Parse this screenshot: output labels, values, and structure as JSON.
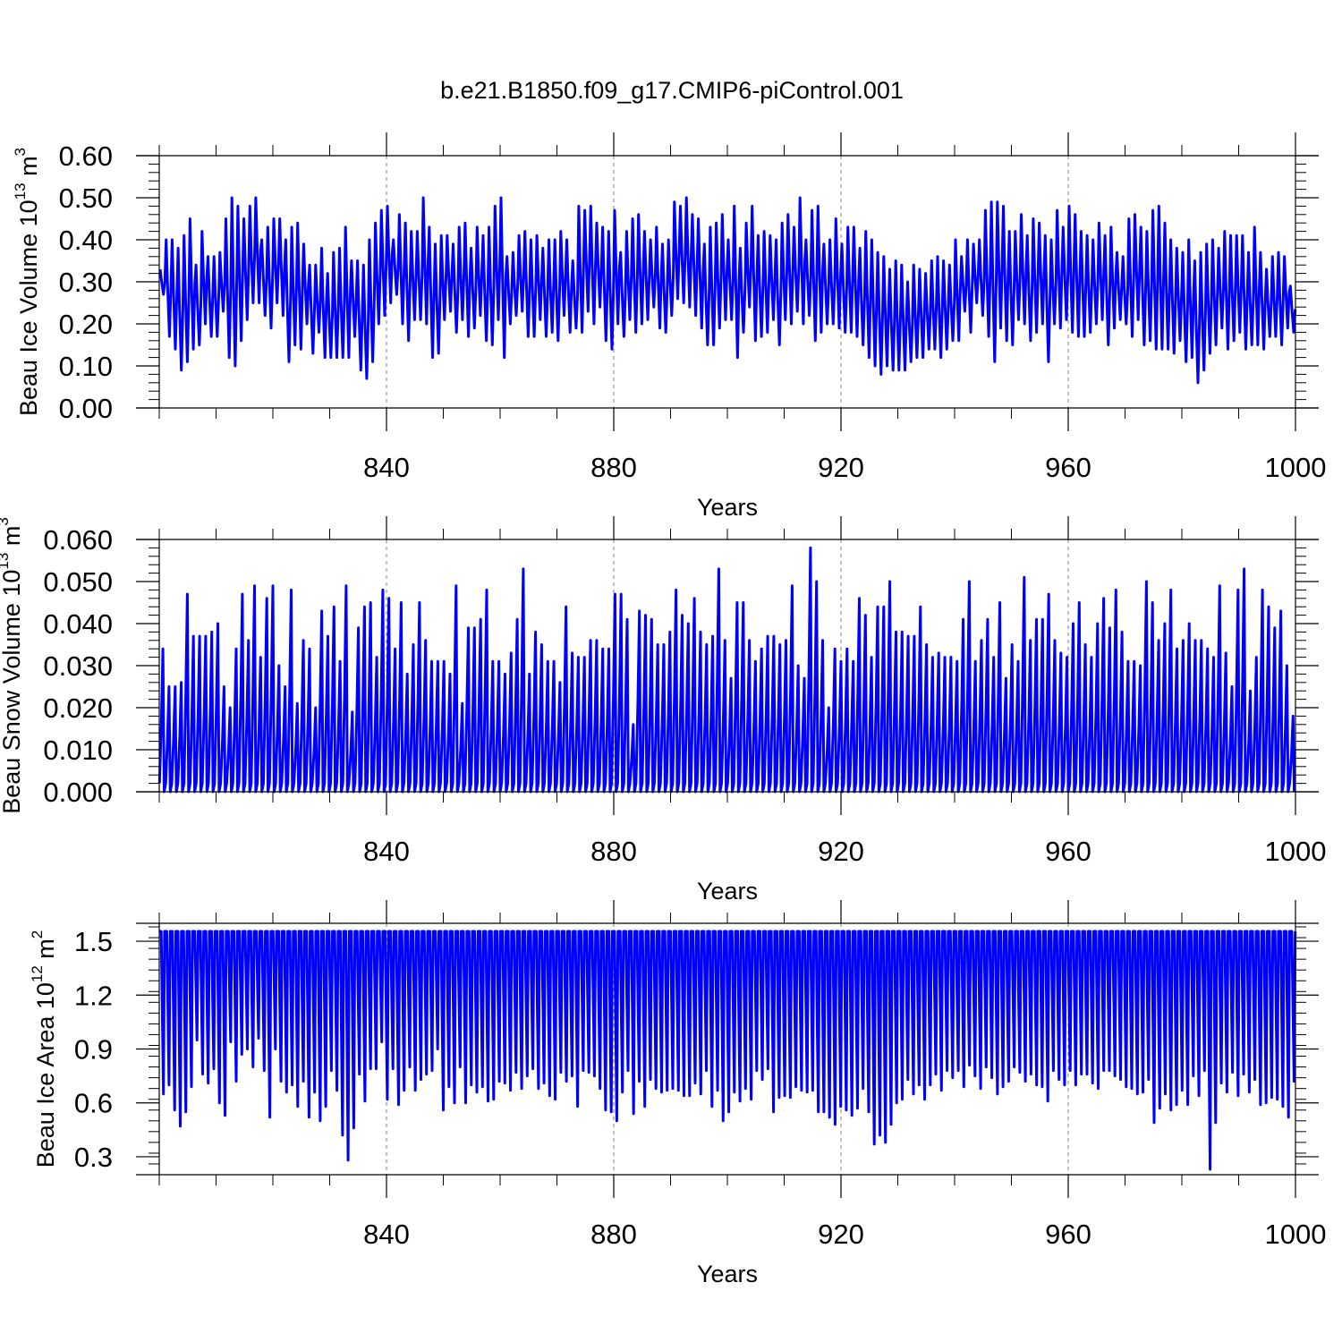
{
  "chart_data": {
    "type": "line",
    "title": "b.e21.B1850.f09_g17.CMIP6-piControl.001",
    "panels": [
      {
        "type": "line",
        "ylabel": "Beau Ice Volume 10",
        "ylabel_exp": "13",
        "ylabel_unit": " m",
        "ylabel_unit_exp": "3",
        "xlabel": "Years",
        "xlim": [
          800,
          1000
        ],
        "ylim": [
          0,
          0.6
        ],
        "yticks": [
          0,
          0.1,
          0.2,
          0.3,
          0.4,
          0.5,
          0.6
        ],
        "ytick_labels": [
          "0.00",
          "0.10",
          "0.20",
          "0.30",
          "0.40",
          "0.50",
          "0.60"
        ],
        "xticks": [
          840,
          880,
          920,
          960,
          1000
        ],
        "xtick_labels": [
          "840",
          "880",
          "920",
          "960",
          "1000"
        ],
        "grid": "vertical dashed at major x ticks",
        "color": "#0000ff",
        "series_note": "monthly values, one seasonal cycle per year",
        "winter_max": [
          0.33,
          0.4,
          0.4,
          0.38,
          0.41,
          0.45,
          0.34,
          0.42,
          0.36,
          0.36,
          0.37,
          0.45,
          0.5,
          0.48,
          0.45,
          0.48,
          0.5,
          0.4,
          0.43,
          0.45,
          0.45,
          0.4,
          0.43,
          0.44,
          0.39,
          0.34,
          0.34,
          0.38,
          0.32,
          0.37,
          0.38,
          0.43,
          0.35,
          0.35,
          0.34,
          0.4,
          0.44,
          0.47,
          0.48,
          0.4,
          0.46,
          0.44,
          0.42,
          0.42,
          0.5,
          0.43,
          0.39,
          0.41,
          0.41,
          0.39,
          0.43,
          0.44,
          0.38,
          0.43,
          0.41,
          0.43,
          0.48,
          0.5,
          0.36,
          0.37,
          0.41,
          0.42,
          0.4,
          0.41,
          0.38,
          0.4,
          0.4,
          0.42,
          0.4,
          0.35,
          0.48,
          0.47,
          0.48,
          0.44,
          0.43,
          0.42,
          0.47,
          0.37,
          0.42,
          0.45,
          0.46,
          0.42,
          0.4,
          0.43,
          0.39,
          0.4,
          0.49,
          0.48,
          0.5,
          0.46,
          0.45,
          0.39,
          0.43,
          0.44,
          0.46,
          0.4,
          0.48,
          0.38,
          0.44,
          0.48,
          0.41,
          0.42,
          0.41,
          0.4,
          0.44,
          0.46,
          0.43,
          0.5,
          0.4,
          0.47,
          0.48,
          0.39,
          0.4,
          0.45,
          0.39,
          0.43,
          0.43,
          0.38,
          0.42,
          0.4,
          0.37,
          0.36,
          0.33,
          0.35,
          0.34,
          0.3,
          0.34,
          0.33,
          0.32,
          0.35,
          0.36,
          0.35,
          0.34,
          0.4,
          0.36,
          0.4,
          0.39,
          0.4,
          0.47,
          0.49,
          0.49,
          0.48,
          0.42,
          0.42,
          0.46,
          0.41,
          0.45,
          0.44,
          0.41,
          0.4,
          0.47,
          0.43,
          0.48,
          0.46,
          0.42,
          0.41,
          0.4,
          0.44,
          0.41,
          0.43,
          0.37,
          0.36,
          0.45,
          0.46,
          0.43,
          0.42,
          0.47,
          0.48,
          0.44,
          0.4,
          0.38,
          0.37,
          0.4,
          0.35,
          0.37,
          0.39,
          0.4,
          0.38,
          0.42,
          0.41,
          0.41,
          0.41,
          0.37,
          0.43,
          0.37,
          0.33,
          0.36,
          0.37,
          0.36,
          0.29
        ],
        "summer_min": [
          0.27,
          0.17,
          0.14,
          0.09,
          0.11,
          0.14,
          0.15,
          0.2,
          0.17,
          0.17,
          0.23,
          0.12,
          0.1,
          0.16,
          0.21,
          0.25,
          0.25,
          0.22,
          0.19,
          0.25,
          0.22,
          0.11,
          0.15,
          0.14,
          0.2,
          0.13,
          0.18,
          0.12,
          0.12,
          0.12,
          0.12,
          0.12,
          0.17,
          0.09,
          0.07,
          0.11,
          0.2,
          0.22,
          0.25,
          0.27,
          0.2,
          0.16,
          0.21,
          0.21,
          0.2,
          0.12,
          0.13,
          0.21,
          0.23,
          0.18,
          0.21,
          0.17,
          0.19,
          0.22,
          0.16,
          0.15,
          0.21,
          0.12,
          0.2,
          0.22,
          0.23,
          0.17,
          0.17,
          0.21,
          0.17,
          0.18,
          0.16,
          0.22,
          0.18,
          0.19,
          0.18,
          0.23,
          0.2,
          0.24,
          0.16,
          0.14,
          0.2,
          0.17,
          0.21,
          0.18,
          0.2,
          0.21,
          0.24,
          0.19,
          0.18,
          0.22,
          0.26,
          0.25,
          0.24,
          0.22,
          0.19,
          0.15,
          0.15,
          0.19,
          0.21,
          0.21,
          0.12,
          0.18,
          0.24,
          0.16,
          0.17,
          0.18,
          0.21,
          0.15,
          0.21,
          0.2,
          0.23,
          0.2,
          0.22,
          0.16,
          0.18,
          0.2,
          0.2,
          0.19,
          0.18,
          0.18,
          0.17,
          0.15,
          0.12,
          0.1,
          0.08,
          0.1,
          0.09,
          0.09,
          0.09,
          0.11,
          0.12,
          0.12,
          0.14,
          0.14,
          0.12,
          0.14,
          0.16,
          0.16,
          0.23,
          0.18,
          0.25,
          0.22,
          0.17,
          0.11,
          0.19,
          0.16,
          0.15,
          0.21,
          0.2,
          0.16,
          0.18,
          0.2,
          0.11,
          0.2,
          0.19,
          0.21,
          0.18,
          0.17,
          0.17,
          0.18,
          0.2,
          0.21,
          0.15,
          0.19,
          0.21,
          0.2,
          0.17,
          0.21,
          0.15,
          0.16,
          0.14,
          0.14,
          0.14,
          0.13,
          0.16,
          0.11,
          0.12,
          0.06,
          0.09,
          0.13,
          0.15,
          0.19,
          0.14,
          0.16,
          0.18,
          0.14,
          0.15,
          0.15,
          0.14,
          0.17,
          0.17,
          0.15,
          0.19,
          0.18
        ]
      },
      {
        "type": "line",
        "ylabel": "Beau Snow Volume 10",
        "ylabel_exp": "13",
        "ylabel_unit": " m",
        "ylabel_unit_exp": "3",
        "xlabel": "Years",
        "xlim": [
          800,
          1000
        ],
        "ylim": [
          0,
          0.06
        ],
        "yticks": [
          0,
          0.01,
          0.02,
          0.03,
          0.04,
          0.05,
          0.06
        ],
        "ytick_labels": [
          "0.000",
          "0.010",
          "0.020",
          "0.030",
          "0.040",
          "0.050",
          "0.060"
        ],
        "xticks": [
          840,
          880,
          920,
          960,
          1000
        ],
        "xtick_labels": [
          "840",
          "880",
          "920",
          "960",
          "1000"
        ],
        "grid": "vertical dashed at major x ticks",
        "color": "#0000ff",
        "series_note": "monthly values, one seasonal cycle per year",
        "winter_max": [
          0.034,
          0.025,
          0.025,
          0.026,
          0.047,
          0.037,
          0.037,
          0.037,
          0.038,
          0.04,
          0.025,
          0.02,
          0.034,
          0.047,
          0.036,
          0.049,
          0.032,
          0.046,
          0.049,
          0.03,
          0.025,
          0.048,
          0.021,
          0.036,
          0.034,
          0.02,
          0.043,
          0.037,
          0.044,
          0.031,
          0.049,
          0.019,
          0.039,
          0.044,
          0.045,
          0.032,
          0.048,
          0.046,
          0.034,
          0.045,
          0.028,
          0.035,
          0.045,
          0.036,
          0.031,
          0.031,
          0.031,
          0.028,
          0.049,
          0.021,
          0.039,
          0.039,
          0.041,
          0.048,
          0.031,
          0.031,
          0.028,
          0.033,
          0.041,
          0.053,
          0.028,
          0.038,
          0.035,
          0.031,
          0.031,
          0.026,
          0.044,
          0.033,
          0.032,
          0.032,
          0.036,
          0.036,
          0.034,
          0.034,
          0.047,
          0.047,
          0.041,
          0.016,
          0.043,
          0.042,
          0.041,
          0.035,
          0.035,
          0.038,
          0.048,
          0.042,
          0.04,
          0.046,
          0.038,
          0.035,
          0.037,
          0.053,
          0.036,
          0.027,
          0.045,
          0.045,
          0.036,
          0.031,
          0.034,
          0.037,
          0.037,
          0.035,
          0.036,
          0.049,
          0.03,
          0.027,
          0.058,
          0.05,
          0.036,
          0.02,
          0.034,
          0.031,
          0.034,
          0.031,
          0.046,
          0.042,
          0.032,
          0.044,
          0.044,
          0.05,
          0.038,
          0.038,
          0.037,
          0.037,
          0.044,
          0.035,
          0.032,
          0.033,
          0.032,
          0.032,
          0.031,
          0.041,
          0.05,
          0.031,
          0.036,
          0.041,
          0.032,
          0.045,
          0.027,
          0.035,
          0.031,
          0.051,
          0.036,
          0.041,
          0.041,
          0.047,
          0.036,
          0.033,
          0.032,
          0.04,
          0.045,
          0.035,
          0.032,
          0.04,
          0.046,
          0.039,
          0.048,
          0.038,
          0.031,
          0.031,
          0.03,
          0.05,
          0.045,
          0.036,
          0.04,
          0.048,
          0.034,
          0.036,
          0.04,
          0.036,
          0.036,
          0.034,
          0.032,
          0.049,
          0.033,
          0.025,
          0.048,
          0.053,
          0.024,
          0.032,
          0.048,
          0.044,
          0.039,
          0.043,
          0.03,
          0.018
        ]
      },
      {
        "type": "line",
        "ylabel": "Beau Ice Area 10",
        "ylabel_exp": "12",
        "ylabel_unit": " m",
        "ylabel_unit_exp": "2",
        "xlabel": "Years",
        "xlim": [
          800,
          1000
        ],
        "ylim": [
          0.2,
          1.6
        ],
        "yticks": [
          0.3,
          0.6,
          0.9,
          1.2,
          1.5
        ],
        "ytick_labels": [
          "0.3",
          "0.6",
          "0.9",
          "1.2",
          "1.5"
        ],
        "xticks": [
          840,
          880,
          920,
          960,
          1000
        ],
        "xtick_labels": [
          "840",
          "880",
          "920",
          "960",
          "1000"
        ],
        "grid": "vertical dashed at major x ticks",
        "color": "#0000ff",
        "series_note": "monthly values, one seasonal cycle per year",
        "winter_max": 1.555,
        "summer_min": [
          0.65,
          0.7,
          0.56,
          0.47,
          0.55,
          0.69,
          0.95,
          0.76,
          0.71,
          0.79,
          0.6,
          0.53,
          0.94,
          0.72,
          0.87,
          0.9,
          0.8,
          0.96,
          0.78,
          0.52,
          0.9,
          0.72,
          0.66,
          0.7,
          0.58,
          0.72,
          0.52,
          0.66,
          0.5,
          0.58,
          0.78,
          0.67,
          0.42,
          0.28,
          0.46,
          0.76,
          0.61,
          0.79,
          0.79,
          0.94,
          0.62,
          0.79,
          0.59,
          0.67,
          0.8,
          0.67,
          0.73,
          0.76,
          0.78,
          0.9,
          0.56,
          0.69,
          0.6,
          0.8,
          0.6,
          0.7,
          0.66,
          0.69,
          0.61,
          0.62,
          0.72,
          0.71,
          0.67,
          0.77,
          0.68,
          0.75,
          0.79,
          0.68,
          0.71,
          0.64,
          0.62,
          0.77,
          0.72,
          0.75,
          0.58,
          0.78,
          0.77,
          0.75,
          0.68,
          0.56,
          0.55,
          0.5,
          0.66,
          0.78,
          0.54,
          0.72,
          0.58,
          0.73,
          0.68,
          0.66,
          0.67,
          0.68,
          0.67,
          0.64,
          0.64,
          0.71,
          0.65,
          0.78,
          0.58,
          0.67,
          0.5,
          0.55,
          0.66,
          0.61,
          0.68,
          0.62,
          0.78,
          0.73,
          0.79,
          0.55,
          0.63,
          0.64,
          0.63,
          0.69,
          0.67,
          0.66,
          0.67,
          0.55,
          0.55,
          0.52,
          0.48,
          0.58,
          0.56,
          0.53,
          0.57,
          0.68,
          0.55,
          0.37,
          0.42,
          0.38,
          0.48,
          0.6,
          0.62,
          0.73,
          0.65,
          0.7,
          0.62,
          0.7,
          0.76,
          0.67,
          0.78,
          0.74,
          0.78,
          0.69,
          0.81,
          0.75,
          0.68,
          0.8,
          0.74,
          0.65,
          0.69,
          0.72,
          0.8,
          0.77,
          0.72,
          0.76,
          0.7,
          0.69,
          0.61,
          0.78,
          0.73,
          0.7,
          0.78,
          0.7,
          0.76,
          0.76,
          0.71,
          0.68,
          0.78,
          0.78,
          0.75,
          0.73,
          0.69,
          0.68,
          0.65,
          0.66,
          0.73,
          0.49,
          0.57,
          0.65,
          0.56,
          0.59,
          0.67,
          0.59,
          0.75,
          0.64,
          0.78,
          0.23,
          0.49,
          0.71,
          0.66,
          0.77,
          0.64,
          0.76,
          0.66,
          0.73,
          0.59,
          0.6,
          0.63,
          0.62,
          0.58,
          0.52,
          0.72
        ]
      }
    ]
  }
}
